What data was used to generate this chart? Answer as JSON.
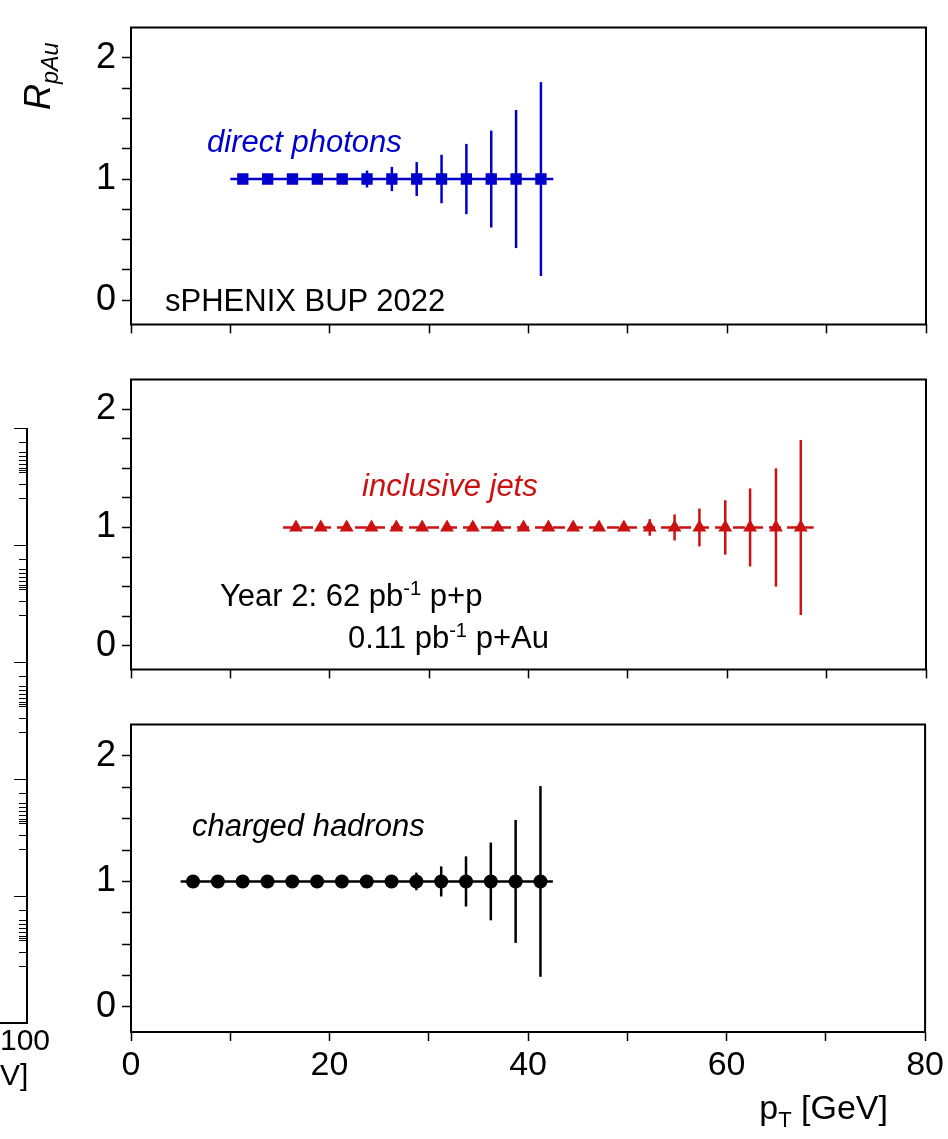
{
  "chart_data": [
    {
      "type": "scatter",
      "ylabel": "R$_{pAu}$",
      "annotations": [
        "sPHENIX BUP 2022"
      ],
      "x": [
        11.25,
        13.75,
        16.25,
        18.75,
        21.25,
        23.75,
        26.25,
        28.75,
        31.25,
        33.75,
        36.25,
        38.75,
        41.25
      ],
      "xlim": [
        0,
        80
      ],
      "xticks": [
        0,
        {
          "value": 10,
          "label": null
        },
        20,
        {
          "value": 30,
          "label": null
        },
        40,
        {
          "value": 50,
          "label": null
        },
        60,
        {
          "value": 70,
          "label": null
        },
        80
      ],
      "ylim": [
        -0.2,
        2.25
      ],
      "yticks": [
        0,
        {
          "value": 0.25,
          "label": null
        },
        {
          "value": 0.5,
          "label": null
        },
        {
          "value": 0.75,
          "label": null
        },
        1,
        {
          "value": 1.25,
          "label": null
        },
        {
          "value": 1.5,
          "label": null
        },
        {
          "value": 1.75,
          "label": null
        },
        2
      ],
      "tick_labels": "y",
      "series": [
        {
          "type": "line",
          "x": [
            10,
            42.5
          ],
          "values": [
            1,
            1
          ],
          "color": "#0000cc",
          "marker": "none",
          "line_style": "solid"
        },
        {
          "name": "direct photons",
          "color": "#0000cc",
          "marker": "square",
          "values": [
            1,
            1,
            1,
            1,
            1,
            1,
            1,
            1,
            1,
            1,
            1,
            1,
            1
          ],
          "errors": [
            null,
            null,
            null,
            null,
            null,
            0.07,
            0.1,
            0.14,
            0.2,
            0.29,
            0.4,
            0.57,
            0.8
          ]
        }
      ]
    },
    {
      "type": "scatter",
      "annotations": [
        "Year 2: 62 pb$^{-1}$ p+p",
        "0.11 pb$^{-1}$ p+Au"
      ],
      "x": [
        16.6,
        19.1,
        21.7,
        24.2,
        26.7,
        29.3,
        31.8,
        34.4,
        36.9,
        39.5,
        42.0,
        44.5,
        47.1,
        49.6,
        52.2,
        54.7,
        57.2,
        59.8,
        62.3,
        64.9,
        67.4
      ],
      "xlim": [
        0,
        80
      ],
      "xticks": [
        0,
        {
          "value": 10,
          "label": null
        },
        20,
        {
          "value": 30,
          "label": null
        },
        40,
        {
          "value": 50,
          "label": null
        },
        60,
        {
          "value": 70,
          "label": null
        },
        80
      ],
      "ylim": [
        -0.2,
        2.25
      ],
      "yticks": [
        0,
        {
          "value": 0.25,
          "label": null
        },
        {
          "value": 0.5,
          "label": null
        },
        {
          "value": 0.75,
          "label": null
        },
        1,
        {
          "value": 1.25,
          "label": null
        },
        {
          "value": 1.5,
          "label": null
        },
        {
          "value": 1.75,
          "label": null
        },
        2
      ],
      "tick_labels": "y",
      "series": [
        {
          "type": "line",
          "x": [
            15.3,
            68.7
          ],
          "values": [
            1,
            1
          ],
          "color": "#cc1111",
          "marker": "none",
          "line_style": "dashed"
        },
        {
          "name": "inclusive jets",
          "color": "#cc1111",
          "marker": "triangle",
          "values": [
            1,
            1,
            1,
            1,
            1,
            1,
            1,
            1,
            1,
            1,
            1,
            1,
            1,
            1,
            1,
            1,
            1,
            1,
            1,
            1,
            1
          ],
          "errors": [
            null,
            null,
            null,
            null,
            null,
            null,
            null,
            null,
            null,
            null,
            null,
            null,
            null,
            null,
            0.07,
            0.11,
            0.16,
            0.23,
            0.33,
            0.5,
            0.74
          ]
        }
      ]
    },
    {
      "type": "scatter",
      "xlabel": "p$_{T}$ [GeV]",
      "x": [
        6.25,
        8.75,
        11.25,
        13.75,
        16.25,
        18.75,
        21.25,
        23.75,
        26.25,
        28.75,
        31.25,
        33.75,
        36.25,
        38.75,
        41.25
      ],
      "xlim": [
        0,
        80
      ],
      "xticks": [
        0,
        {
          "value": 10,
          "label": null
        },
        20,
        {
          "value": 30,
          "label": null
        },
        40,
        {
          "value": 50,
          "label": null
        },
        60,
        {
          "value": 70,
          "label": null
        },
        80
      ],
      "ylim": [
        -0.2,
        2.25
      ],
      "yticks": [
        0,
        {
          "value": 0.25,
          "label": null
        },
        {
          "value": 0.5,
          "label": null
        },
        {
          "value": 0.75,
          "label": null
        },
        1,
        {
          "value": 1.25,
          "label": null
        },
        {
          "value": 1.5,
          "label": null
        },
        {
          "value": 1.75,
          "label": null
        },
        2
      ],
      "series": [
        {
          "type": "line",
          "x": [
            5,
            42.5
          ],
          "values": [
            1,
            1
          ],
          "color": "#000000",
          "marker": "none",
          "line_style": "solid"
        },
        {
          "name": "charged hadrons",
          "color": "#000000",
          "marker": "circle",
          "values": [
            1,
            1,
            1,
            1,
            1,
            1,
            1,
            1,
            1,
            1,
            1,
            1,
            1,
            1,
            1
          ],
          "errors": [
            null,
            null,
            null,
            null,
            null,
            null,
            null,
            null,
            null,
            0.07,
            0.12,
            0.2,
            0.31,
            0.49,
            0.76
          ]
        }
      ]
    },
    {
      "type": "other",
      "annotations": [
        "100",
        "V]"
      ]
    }
  ]
}
